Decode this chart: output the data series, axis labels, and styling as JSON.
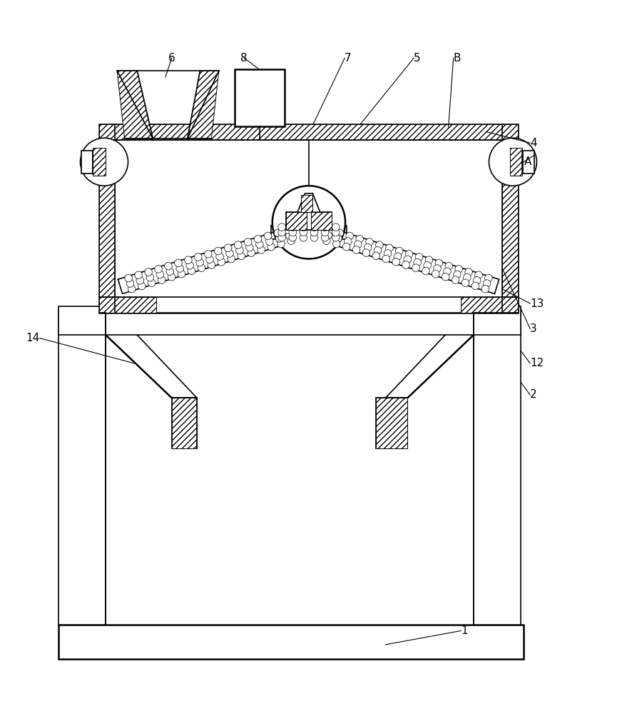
{
  "bg_color": "#ffffff",
  "line_color": "#000000",
  "fig_width": 8.87,
  "fig_height": 10.0
}
